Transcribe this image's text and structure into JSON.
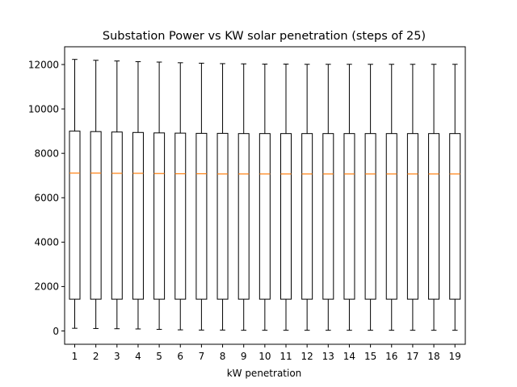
{
  "chart_data": {
    "type": "box",
    "title": "Substation Power vs KW solar penetration (steps of 25)",
    "xlabel": "kW penetration",
    "ylabel": "",
    "categories": [
      "1",
      "2",
      "3",
      "4",
      "5",
      "6",
      "7",
      "8",
      "9",
      "10",
      "11",
      "12",
      "13",
      "14",
      "15",
      "16",
      "17",
      "18",
      "19"
    ],
    "ylim": [
      -600,
      12800
    ],
    "yticks": [
      0,
      2000,
      4000,
      6000,
      8000,
      10000,
      12000
    ],
    "grid": false,
    "colors": {
      "box": "#000000",
      "median": "#ff7f0e"
    },
    "boxes": [
      {
        "whisker_low": 120,
        "q1": 1430,
        "median": 7110,
        "q3": 9000,
        "whisker_high": 12230
      },
      {
        "whisker_low": 110,
        "q1": 1430,
        "median": 7110,
        "q3": 8980,
        "whisker_high": 12190
      },
      {
        "whisker_low": 100,
        "q1": 1430,
        "median": 7100,
        "q3": 8960,
        "whisker_high": 12160
      },
      {
        "whisker_low": 90,
        "q1": 1430,
        "median": 7100,
        "q3": 8940,
        "whisker_high": 12130
      },
      {
        "whisker_low": 70,
        "q1": 1430,
        "median": 7090,
        "q3": 8920,
        "whisker_high": 12110
      },
      {
        "whisker_low": 50,
        "q1": 1430,
        "median": 7080,
        "q3": 8910,
        "whisker_high": 12080
      },
      {
        "whisker_low": 40,
        "q1": 1430,
        "median": 7080,
        "q3": 8900,
        "whisker_high": 12060
      },
      {
        "whisker_low": 40,
        "q1": 1430,
        "median": 7070,
        "q3": 8900,
        "whisker_high": 12040
      },
      {
        "whisker_low": 30,
        "q1": 1430,
        "median": 7070,
        "q3": 8890,
        "whisker_high": 12030
      },
      {
        "whisker_low": 30,
        "q1": 1430,
        "median": 7070,
        "q3": 8890,
        "whisker_high": 12020
      },
      {
        "whisker_low": 30,
        "q1": 1430,
        "median": 7070,
        "q3": 8890,
        "whisker_high": 12020
      },
      {
        "whisker_low": 30,
        "q1": 1430,
        "median": 7070,
        "q3": 8890,
        "whisker_high": 12010
      },
      {
        "whisker_low": 30,
        "q1": 1430,
        "median": 7070,
        "q3": 8890,
        "whisker_high": 12010
      },
      {
        "whisker_low": 30,
        "q1": 1430,
        "median": 7070,
        "q3": 8890,
        "whisker_high": 12010
      },
      {
        "whisker_low": 30,
        "q1": 1430,
        "median": 7070,
        "q3": 8890,
        "whisker_high": 12010
      },
      {
        "whisker_low": 30,
        "q1": 1430,
        "median": 7070,
        "q3": 8890,
        "whisker_high": 12010
      },
      {
        "whisker_low": 30,
        "q1": 1430,
        "median": 7070,
        "q3": 8890,
        "whisker_high": 12010
      },
      {
        "whisker_low": 30,
        "q1": 1430,
        "median": 7070,
        "q3": 8890,
        "whisker_high": 12010
      },
      {
        "whisker_low": 30,
        "q1": 1430,
        "median": 7070,
        "q3": 8890,
        "whisker_high": 12010
      }
    ]
  }
}
